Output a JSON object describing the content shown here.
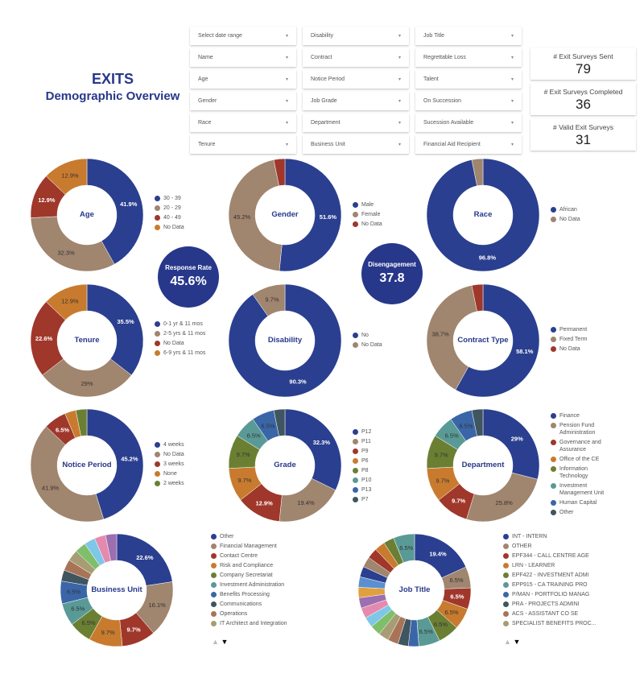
{
  "header": {
    "title": "EXITS",
    "subtitle": "Demographic Overview"
  },
  "filters": [
    [
      "Select date range",
      "Name",
      "Age",
      "Gender",
      "Race",
      "Tenure"
    ],
    [
      "Disability",
      "Contract",
      "Notice Period",
      "Job Grade",
      "Department",
      "Business Unit"
    ],
    [
      "Job Title",
      "Regrettable Loss",
      "Talent",
      "On Succession",
      "Sucession Available",
      "Financial Aid Recipient"
    ]
  ],
  "filter_arrow": "▾",
  "kpis": [
    {
      "label": "# Exit Surveys Sent",
      "value": "79"
    },
    {
      "label": "# Exit Surveys Completed",
      "value": "36"
    },
    {
      "label": "# Valid Exit Surveys",
      "value": "31"
    }
  ],
  "bubbles": {
    "response": {
      "label": "Response Rate",
      "value": "45.6%"
    },
    "disengagement": {
      "label": "Disengagement",
      "value": "37.8"
    }
  },
  "colors": [
    "#2a3f8f",
    "#a0856f",
    "#a0372b",
    "#c87b2e",
    "#6b7f33",
    "#5a9a96",
    "#3a66a8",
    "#3f5560",
    "#a87458",
    "#a89c74",
    "#7fbf6a",
    "#7fc7e8",
    "#e48aae",
    "#9b6fb0",
    "#e0a040",
    "#5b8fd0"
  ],
  "pager": {
    "up": "▲",
    "down": "▼"
  },
  "charts": [
    {
      "id": "age",
      "title": "Age",
      "legend": [
        "30 - 39",
        "20 - 29",
        "40 - 49",
        "No Data"
      ],
      "values": [
        41.9,
        32.3,
        12.9,
        12.9
      ],
      "labels": [
        "41.9%",
        "32.3%",
        "12.9%",
        "12.9%"
      ]
    },
    {
      "id": "gender",
      "title": "Gender",
      "legend": [
        "Male",
        "Female",
        "No Data"
      ],
      "values": [
        51.6,
        45.2,
        3.2
      ],
      "labels": [
        "51.6%",
        "45.2%",
        ""
      ]
    },
    {
      "id": "race",
      "title": "Race",
      "legend": [
        "African",
        "No Data"
      ],
      "values": [
        96.8,
        3.2
      ],
      "labels": [
        "96.8%",
        ""
      ]
    },
    {
      "id": "tenure",
      "title": "Tenure",
      "legend": [
        "0-1 yr & 11 mos",
        "2-5 yrs & 11 mos",
        "No Data",
        "6-9 yrs & 11 mos"
      ],
      "values": [
        35.5,
        29,
        22.6,
        12.9
      ],
      "labels": [
        "35.5%",
        "29%",
        "22.6%",
        "12.9%"
      ]
    },
    {
      "id": "disability",
      "title": "Disability",
      "legend": [
        "No",
        "No Data"
      ],
      "values": [
        90.3,
        9.7
      ],
      "labels": [
        "90.3%",
        "9.7%"
      ]
    },
    {
      "id": "contract",
      "title": "Contract Type",
      "legend": [
        "Permanent",
        "Fixed Term",
        "No Data"
      ],
      "values": [
        58.1,
        38.7,
        3.2
      ],
      "labels": [
        "58.1%",
        "38.7%",
        ""
      ]
    },
    {
      "id": "notice",
      "title": "Notice Period",
      "legend": [
        "4 weeks",
        "No Data",
        "3 weeks",
        "None",
        "2 weeks"
      ],
      "values": [
        45.2,
        41.9,
        6.5,
        3.2,
        3.2
      ],
      "labels": [
        "45.2%",
        "41.9%",
        "6.5%",
        "",
        ""
      ]
    },
    {
      "id": "grade",
      "title": "Grade",
      "legend": [
        "P12",
        "P11",
        "P9",
        "P6",
        "P8",
        "P10",
        "P13",
        "P7"
      ],
      "values": [
        32.3,
        19.4,
        12.9,
        9.7,
        9.7,
        6.5,
        6.5,
        3.2
      ],
      "labels": [
        "32.3%",
        "19.4%",
        "12.9%",
        "9.7%",
        "9.7%",
        "6.5%",
        "6.5%",
        ""
      ]
    },
    {
      "id": "department",
      "title": "Department",
      "legend": [
        "Finance",
        "Pension Fund Administration",
        "Governance and Assurance",
        "Office of the CE",
        "Information Technology",
        "Investment Management Unit",
        "Human Capital",
        "Other"
      ],
      "values": [
        29,
        25.8,
        9.7,
        9.7,
        9.7,
        6.5,
        6.5,
        3.2
      ],
      "labels": [
        "29%",
        "25.8%",
        "9.7%",
        "9.7%",
        "9.7%",
        "6.5%",
        "6.5%",
        ""
      ]
    },
    {
      "id": "business-unit",
      "title": "Business Unit",
      "legend": [
        "Other",
        "Financial Management",
        "Contact Centre",
        "Risk and Compliance",
        "Company Secretariat",
        "Investment Administration",
        "Benefits Processing",
        "Communications",
        "Operations",
        "IT Architect and Integration"
      ],
      "values": [
        22.6,
        16.1,
        9.7,
        9.7,
        6.5,
        6.5,
        6.5,
        3.2,
        3.2,
        3.2,
        3.2,
        3.2,
        3.2,
        3.2
      ],
      "labels": [
        "22.6%",
        "16.1%",
        "9.7%",
        "9.7%",
        "6.5%",
        "6.5%",
        "6.5%",
        "",
        "",
        "",
        "",
        "",
        "",
        ""
      ]
    },
    {
      "id": "job-title",
      "title": "Job Title",
      "legend": [
        "INT - INTERN",
        "OTHER",
        "EPF344 - CALL CENTRE AGE",
        "LRN - LEARNER",
        "EPF422 - INVESTMENT ADMI",
        "EPP915 - CA TRAINING PRO",
        "P/MAN - PORTFOLIO MANAG",
        "PRA - PROJECTS ADMINI",
        "ACS - ASSISTANT CO SE",
        "SPECIALIST BENEFITS PROC..."
      ],
      "values": [
        19.4,
        6.5,
        6.5,
        6.5,
        6.5,
        6.5,
        3.2,
        3.2,
        3.2,
        3.2,
        3.2,
        3.2,
        3.2,
        3.2,
        3.2,
        3.2,
        3.2,
        3.2,
        3.2,
        3.2,
        3.2,
        6.5
      ],
      "labels": [
        "19.4%",
        "6.5%",
        "6.5%",
        "6.5%",
        "6.5%",
        "6.5%",
        "",
        "",
        "",
        "",
        "",
        "",
        "",
        "",
        "",
        "",
        "",
        "",
        "",
        "",
        "",
        "6.5%"
      ]
    }
  ]
}
